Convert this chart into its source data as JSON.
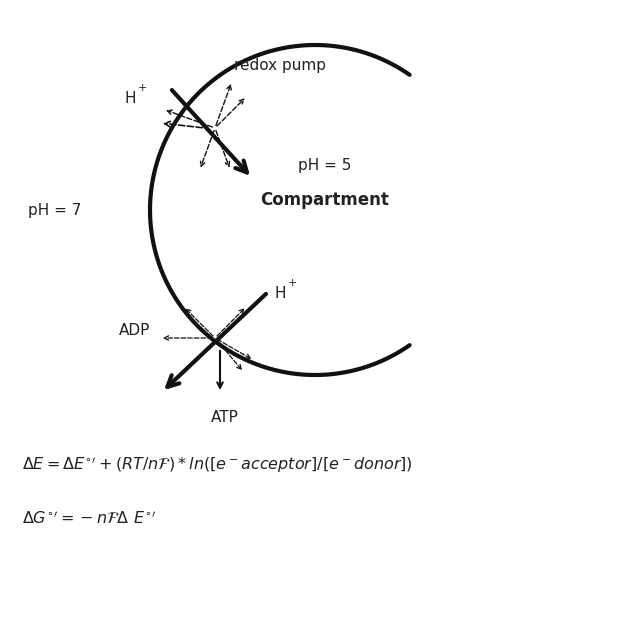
{
  "bg_color": "#ffffff",
  "fig_width": 6.34,
  "fig_height": 6.18,
  "dpi": 100,
  "label_redox_pump": "redox pump",
  "label_H_top": "H+",
  "label_pH7": "pH = 7",
  "label_pH5": "pH = 5",
  "label_compartment": "Compartment",
  "label_H_bottom": "H+",
  "label_ADP": "ADP",
  "label_ATP": "ATP",
  "text_color": "#222222",
  "arrow_color": "#111111",
  "line_color": "#111111"
}
